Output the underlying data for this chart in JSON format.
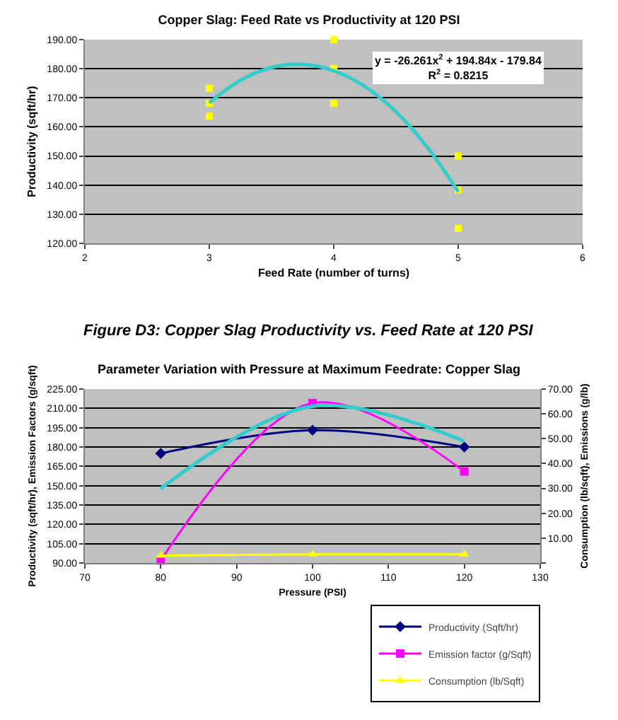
{
  "chart_data": [
    {
      "type": "scatter",
      "title": "Copper Slag: Feed Rate vs Productivity at 120 PSI",
      "xlabel": "Feed Rate (number of turns)",
      "ylabel": "Productivity (sqft/hr)",
      "xlim": [
        2,
        6
      ],
      "xticks": [
        2,
        3,
        4,
        5,
        6
      ],
      "ylim": [
        120,
        190
      ],
      "yticks": [
        {
          "value": 120,
          "label": "120.00"
        },
        {
          "value": 130,
          "label": "130.00"
        },
        {
          "value": 140,
          "label": "140.00"
        },
        {
          "value": 150,
          "label": "150.00"
        },
        {
          "value": 160,
          "label": "160.00"
        },
        {
          "value": 170,
          "label": "170.00"
        },
        {
          "value": 180,
          "label": "180.00"
        },
        {
          "value": 190,
          "label": "190.00"
        }
      ],
      "grid": "y",
      "series": [
        {
          "type": "scatter",
          "color": "#ffff00",
          "marker": "square",
          "x": [
            3,
            3,
            3,
            4,
            4,
            4,
            5,
            5,
            5
          ],
          "values": [
            173.3,
            168.1,
            163.7,
            190,
            180.1,
            168.1,
            150,
            138.4,
            125.1
          ]
        },
        {
          "type": "line",
          "color": "#33cccc",
          "marker": "none",
          "x": [
            3,
            3.25,
            3.5,
            3.75,
            4,
            4.25,
            4.5,
            4.75,
            5
          ],
          "values": [
            168.3,
            176.0,
            180.4,
            181.5,
            179.3,
            173.9,
            165.2,
            153.1,
            137.8
          ]
        }
      ],
      "annotations": [
        "y = -26.261x$^{2}$ + 194.84x - 179.84",
        "R$^{2}$ = 0.8215",
        "Figure D3: Copper Slag Productivity vs. Feed Rate at 120 PSI"
      ]
    },
    {
      "type": "line",
      "title": "Parameter Variation with Pressure at Maximum Feedrate: Copper Slag",
      "xlabel": "Pressure (PSI)",
      "ylabel": "Productivity (sqft/hr), Emission Factors (g/sqft)",
      "y2label": "Consumption (lb/sqft), Emissions (g/lb)",
      "x": [
        80,
        100,
        120
      ],
      "xlim": [
        70,
        130
      ],
      "xticks": [
        70,
        80,
        90,
        100,
        110,
        120,
        130
      ],
      "ylim": [
        90,
        225
      ],
      "yticks": [
        {
          "value": 90,
          "label": "90.00"
        },
        {
          "value": 105,
          "label": "105.00"
        },
        {
          "value": 120,
          "label": "120.00"
        },
        {
          "value": 135,
          "label": "135.00"
        },
        {
          "value": 150,
          "label": "150.00"
        },
        {
          "value": 165,
          "label": "165.00"
        },
        {
          "value": 180,
          "label": "180.00"
        },
        {
          "value": 195,
          "label": "195.00"
        },
        {
          "value": 210,
          "label": "210.00"
        },
        {
          "value": 225,
          "label": "225.00"
        }
      ],
      "y2lim": [
        0,
        70
      ],
      "y2ticks": [
        {
          "value": 0,
          "label": null
        },
        {
          "value": 10,
          "label": "10.00"
        },
        {
          "value": 20,
          "label": "20.00"
        },
        {
          "value": 30,
          "label": "30.00"
        },
        {
          "value": 40,
          "label": "40.00"
        },
        {
          "value": 50,
          "label": "50.00"
        },
        {
          "value": 60,
          "label": "60.00"
        },
        {
          "value": 70,
          "label": "70.00"
        }
      ],
      "grid": "y",
      "legend": "bottom right",
      "series": [
        {
          "name": "Productivity (Sqft/hr)",
          "color": "#000080",
          "marker": "diamond",
          "values": [
            175,
            193,
            180
          ]
        },
        {
          "name": "Emission factor (g/Sqft)",
          "color": "#ff00ff",
          "marker": "square",
          "values": [
            92,
            214,
            161
          ]
        },
        {
          "name": "Consumption (lb/Sqft)",
          "color": "#ffff00",
          "marker": "triangle",
          "axis": "y2",
          "values": [
            3,
            3.5,
            3.5
          ]
        },
        {
          "color": "#33cccc",
          "marker": "none",
          "axis": "y2",
          "values": [
            30,
            63,
            49
          ]
        }
      ]
    }
  ]
}
